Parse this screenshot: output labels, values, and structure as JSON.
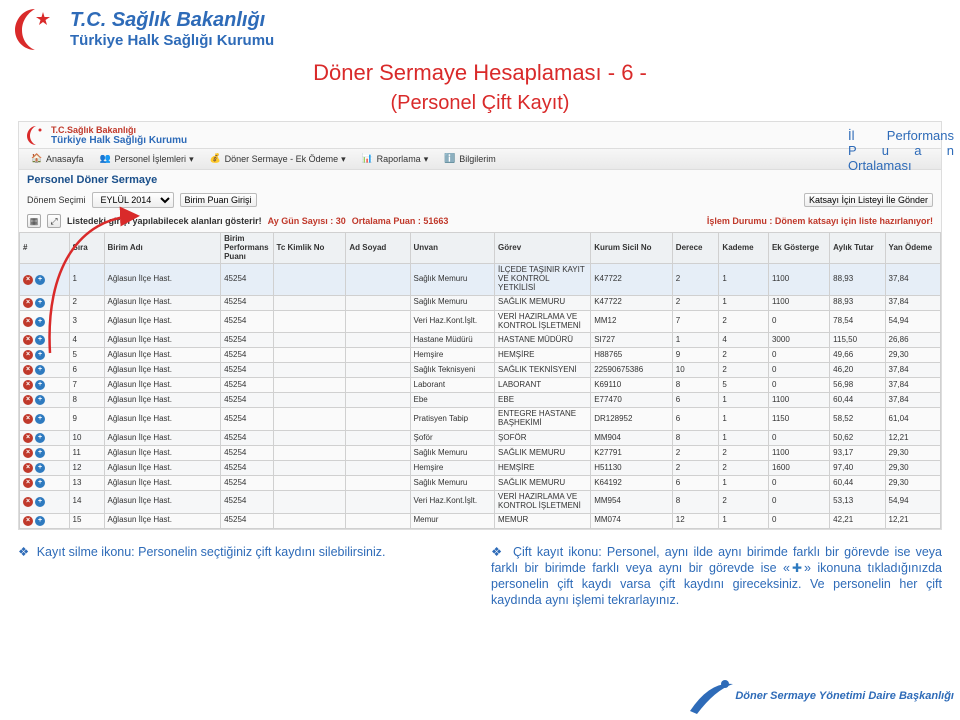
{
  "ministry": {
    "line1": "T.C. Sağlık Bakanlığı",
    "line2": "Türkiye Halk Sağlığı Kurumu"
  },
  "slide": {
    "title": "Döner Sermaye Hesaplaması - 6 -",
    "subtitle": "(Personel Çift Kayıt)"
  },
  "app": {
    "header_line1": "T.C.Sağlık Bakanlığı",
    "header_line2": "Türkiye Halk Sağlığı Kurumu",
    "menu": {
      "home": "Anasayfa",
      "personel": "Personel İşlemleri",
      "doner": "Döner Sermaye - Ek Ödeme",
      "raporlama": "Raporlama",
      "bilgilerim": "Bilgilerim"
    },
    "section_title": "Personel Döner Sermaye",
    "donem_label": "Dönem Seçimi",
    "donem_value": "EYLÜL 2014",
    "birim_puan_btn": "Birim Puan Girişi",
    "katsayi_btn": "Katsayı İçin Listeyi İle Gönder",
    "list_msg": "Listedeki girişi yapılabilecek alanları gösterir!",
    "ay_gun_label": "Ay Gün Sayısı : 30",
    "ort_puan_label": "Ortalama Puan : 51663",
    "islem_durumu": "İşlem Durumu : Dönem katsayı için liste hazırlanıyor!"
  },
  "table": {
    "columns": {
      "act": "#",
      "sira": "Sıra",
      "birim": "Birim Adı",
      "perf": "Birim Performans Puanı",
      "tc": "Tc Kimlik No",
      "ad": "Ad Soyad",
      "unvan": "Unvan",
      "gorev": "Görev",
      "sicil": "Kurum Sicil No",
      "derece": "Derece",
      "kademe": "Kademe",
      "ek": "Ek Gösterge",
      "ayl": "Aylık Tutar",
      "yan": "Yan Ödeme"
    },
    "rows": [
      {
        "n": 1,
        "hl": true,
        "birim": "Ağlasun İlçe Hast.",
        "perf": "45254",
        "unvan": "Sağlık Memuru",
        "gorev": "İLÇEDE TAŞINIR KAYIT VE KONTROL YETKİLİSİ",
        "sicil": "K47722",
        "der": "2",
        "kad": "1",
        "ek": "1100",
        "ayl": "88,93",
        "yan": "37,84"
      },
      {
        "n": 2,
        "birim": "Ağlasun İlçe Hast.",
        "perf": "45254",
        "unvan": "Sağlık Memuru",
        "gorev": "SAĞLIK MEMURU",
        "sicil": "K47722",
        "der": "2",
        "kad": "1",
        "ek": "1100",
        "ayl": "88,93",
        "yan": "37,84"
      },
      {
        "n": 3,
        "birim": "Ağlasun İlçe Hast.",
        "perf": "45254",
        "unvan": "Veri Haz.Kont.İşlt.",
        "gorev": "VERİ HAZIRLAMA VE KONTROL İŞLETMENİ",
        "sicil": "MM12",
        "der": "7",
        "kad": "2",
        "ek": "0",
        "ayl": "78,54",
        "yan": "54,94"
      },
      {
        "n": 4,
        "birim": "Ağlasun İlçe Hast.",
        "perf": "45254",
        "unvan": "Hastane Müdürü",
        "gorev": "HASTANE MÜDÜRÜ",
        "sicil": "SI727",
        "der": "1",
        "kad": "4",
        "ek": "3000",
        "ayl": "115,50",
        "yan": "26,86"
      },
      {
        "n": 5,
        "birim": "Ağlasun İlçe Hast.",
        "perf": "45254",
        "unvan": "Hemşire",
        "gorev": "HEMŞİRE",
        "sicil": "H88765",
        "der": "9",
        "kad": "2",
        "ek": "0",
        "ayl": "49,66",
        "yan": "29,30"
      },
      {
        "n": 6,
        "birim": "Ağlasun İlçe Hast.",
        "perf": "45254",
        "unvan": "Sağlık Teknisyeni",
        "gorev": "SAĞLIK TEKNİSYENİ",
        "sicil": "22590675386",
        "der": "10",
        "kad": "2",
        "ek": "0",
        "ayl": "46,20",
        "yan": "37,84"
      },
      {
        "n": 7,
        "birim": "Ağlasun İlçe Hast.",
        "perf": "45254",
        "unvan": "Laborant",
        "gorev": "LABORANT",
        "sicil": "K69110",
        "der": "8",
        "kad": "5",
        "ek": "0",
        "ayl": "56,98",
        "yan": "37,84"
      },
      {
        "n": 8,
        "birim": "Ağlasun İlçe Hast.",
        "perf": "45254",
        "unvan": "Ebe",
        "gorev": "EBE",
        "sicil": "E77470",
        "der": "6",
        "kad": "1",
        "ek": "1100",
        "ayl": "60,44",
        "yan": "37,84"
      },
      {
        "n": 9,
        "birim": "Ağlasun İlçe Hast.",
        "perf": "45254",
        "unvan": "Pratisyen Tabip",
        "gorev": "ENTEGRE HASTANE BAŞHEKİMİ",
        "sicil": "DR128952",
        "der": "6",
        "kad": "1",
        "ek": "1150",
        "ayl": "58,52",
        "yan": "61,04"
      },
      {
        "n": 10,
        "birim": "Ağlasun İlçe Hast.",
        "perf": "45254",
        "unvan": "Şoför",
        "gorev": "ŞOFÖR",
        "sicil": "MM904",
        "der": "8",
        "kad": "1",
        "ek": "0",
        "ayl": "50,62",
        "yan": "12,21"
      },
      {
        "n": 11,
        "birim": "Ağlasun İlçe Hast.",
        "perf": "45254",
        "unvan": "Sağlık Memuru",
        "gorev": "SAĞLIK MEMURU",
        "sicil": "K27791",
        "der": "2",
        "kad": "2",
        "ek": "1100",
        "ayl": "93,17",
        "yan": "29,30"
      },
      {
        "n": 12,
        "birim": "Ağlasun İlçe Hast.",
        "perf": "45254",
        "unvan": "Hemşire",
        "gorev": "HEMŞİRE",
        "sicil": "H51130",
        "der": "2",
        "kad": "2",
        "ek": "1600",
        "ayl": "97,40",
        "yan": "29,30"
      },
      {
        "n": 13,
        "birim": "Ağlasun İlçe Hast.",
        "perf": "45254",
        "unvan": "Sağlık Memuru",
        "gorev": "SAĞLIK MEMURU",
        "sicil": "K64192",
        "der": "6",
        "kad": "1",
        "ek": "0",
        "ayl": "60,44",
        "yan": "29,30"
      },
      {
        "n": 14,
        "birim": "Ağlasun İlçe Hast.",
        "perf": "45254",
        "unvan": "Veri Haz.Kont.İşlt.",
        "gorev": "VERİ HAZIRLAMA VE KONTROL İŞLETMENİ",
        "sicil": "MM954",
        "der": "8",
        "kad": "2",
        "ek": "0",
        "ayl": "53,13",
        "yan": "54,94"
      },
      {
        "n": 15,
        "birim": "Ağlasun İlçe Hast.",
        "perf": "45254",
        "unvan": "Memur",
        "gorev": "MEMUR",
        "sicil": "MM074",
        "der": "12",
        "kad": "1",
        "ek": "0",
        "ayl": "42,21",
        "yan": "12,21"
      }
    ]
  },
  "side_note": {
    "l1": "İl Performans",
    "l2": "P u a n",
    "l3": "Ortalaması"
  },
  "notes": {
    "left": "Kayıt silme ikonu: Personelin seçtiğiniz çift kaydını silebilirsiniz.",
    "right_a": "Çift kayıt ikonu: Personel, aynı ilde aynı birimde farklı bir görevde ise veya farklı bir birimde farklı veya aynı bir görevde ise «",
    "right_b": "» ikonuna tıkladığınızda personelin çift kaydı varsa çift kaydını gireceksiniz. Ve personelin her çift kaydında aynı işlemi tekrarlayınız."
  },
  "footer": "Döner Sermaye Yönetimi Daire Başkanlığı",
  "colors": {
    "blue": "#2e6bb8",
    "red": "#d92a2a",
    "row_hl": "#e6eef7",
    "del": "#c0392b",
    "add": "#2e7abf"
  }
}
